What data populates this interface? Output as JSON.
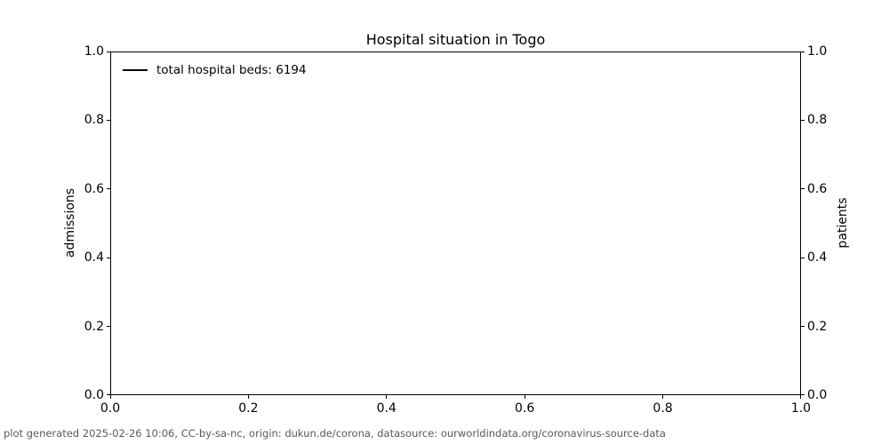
{
  "title": "Hospital situation in Togo",
  "legend": {
    "position": "upper left",
    "items": [
      {
        "label": "total hospital beds: 6194",
        "line_color": "#000000"
      }
    ]
  },
  "axes": {
    "left": {
      "label": "admissions",
      "tick_labels": [
        "1.0",
        "0.8",
        "0.6",
        "0.4",
        "0.2",
        "0.0"
      ]
    },
    "right": {
      "label": "patients",
      "tick_labels": [
        "1.0",
        "0.8",
        "0.6",
        "0.4",
        "0.2",
        "0.0"
      ]
    },
    "x": {
      "label": "",
      "tick_labels": [
        "0.0",
        "0.2",
        "0.4",
        "0.6",
        "0.8",
        "1.0"
      ]
    }
  },
  "footer": "plot generated 2025-02-26 10:06, CC-by-sa-nc, origin: dukun.de/corona, datasource: ourworldindata.org/coronavirus-source-data",
  "colors": {
    "spine": "#000000",
    "text": "#000000",
    "footer_text": "#595959",
    "background": "#ffffff",
    "series_line": "#000000"
  },
  "chart_data": {
    "type": "line",
    "title": "Hospital situation in Togo",
    "xlabel": "",
    "ylabel_left": "admissions",
    "ylabel_right": "patients",
    "xlim": [
      0.0,
      1.0
    ],
    "ylim_left": [
      0.0,
      1.0
    ],
    "ylim_right": [
      0.0,
      1.0
    ],
    "x_ticks": [
      0.0,
      0.2,
      0.4,
      0.6,
      0.8,
      1.0
    ],
    "y_ticks_left": [
      0.0,
      0.2,
      0.4,
      0.6,
      0.8,
      1.0
    ],
    "y_ticks_right": [
      0.0,
      0.2,
      0.4,
      0.6,
      0.8,
      1.0
    ],
    "grid": false,
    "legend_position": "upper left",
    "series": [
      {
        "name": "total hospital beds: 6194",
        "color": "#000000",
        "x": [],
        "values": []
      }
    ]
  }
}
